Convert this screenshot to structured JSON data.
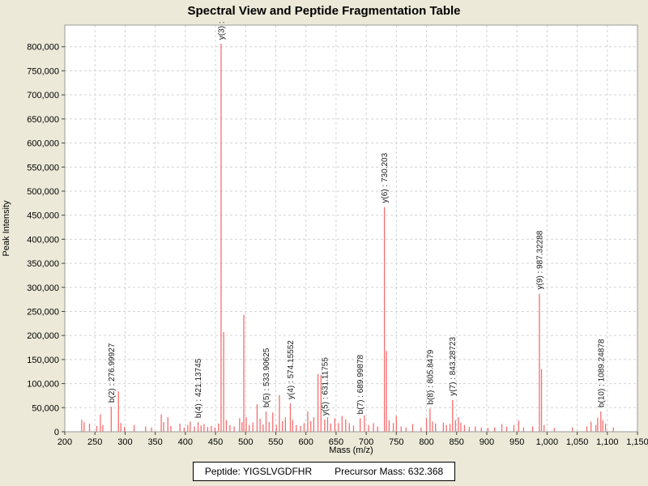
{
  "window": {
    "title": "Spectral View and Peptide Fragmentation Table"
  },
  "status_bar": {
    "peptide": "Peptide: YIGSLVGDFHR",
    "precursor_mass": "Precursor Mass: 632.368"
  },
  "chart_data": {
    "type": "bar",
    "title": "Spectral View and Peptide Fragmentation Table",
    "xlabel": "Mass (m/z)",
    "ylabel": "Peak Intensity",
    "xlim": [
      200,
      1150
    ],
    "ylim": [
      0,
      845000
    ],
    "xtick_interval": 50,
    "ytick_interval": 50000,
    "ytick_top": 800000,
    "grid": true,
    "legend": "none",
    "colors": {
      "peak": "#f56e6e",
      "grid": "#d4d4d4",
      "plot_bg": "#ffffff",
      "window_bg": "#ece9d8",
      "frame": "#9a9a9a",
      "tick": "#444444",
      "label_text": "#1a1a1a"
    },
    "annotations": [
      {
        "label": "b(2) : 276.99927",
        "mz": 276.99927
      },
      {
        "label": "b(4) : 421.13745",
        "mz": 421.13745
      },
      {
        "label": "y(3) :",
        "mz": 459.25
      },
      {
        "label": "b(5) : 533.90625",
        "mz": 533.90625
      },
      {
        "label": "y(4) : 574.15552",
        "mz": 574.15552
      },
      {
        "label": "y(5) : 631.11755",
        "mz": 631.11755
      },
      {
        "label": "b(7) : 689.99878",
        "mz": 689.99878
      },
      {
        "label": "y(6) : 730.203",
        "mz": 730.203
      },
      {
        "label": "b(8) : 805.8479",
        "mz": 805.8479
      },
      {
        "label": "y(7) : 843.28723",
        "mz": 843.28723
      },
      {
        "label": "y(9) : 987.32288",
        "mz": 987.32288
      },
      {
        "label": "b(10) : 1089.24878",
        "mz": 1089.24878
      }
    ],
    "peaks": [
      [
        228,
        25000
      ],
      [
        232,
        20000
      ],
      [
        241,
        17000
      ],
      [
        253,
        12000
      ],
      [
        259,
        36000
      ],
      [
        263,
        14000
      ],
      [
        276.99927,
        52000,
        "b(2) : 276.99927"
      ],
      [
        289,
        84000
      ],
      [
        293,
        18000
      ],
      [
        299,
        10000
      ],
      [
        315,
        14000
      ],
      [
        334,
        11000
      ],
      [
        344,
        9000
      ],
      [
        360,
        36000
      ],
      [
        364,
        20000
      ],
      [
        371,
        30000
      ],
      [
        376,
        12000
      ],
      [
        391,
        17000
      ],
      [
        398,
        9000
      ],
      [
        404,
        14000
      ],
      [
        408,
        21000
      ],
      [
        415,
        11000
      ],
      [
        421.13745,
        20000,
        "b(4) : 421.13745"
      ],
      [
        426,
        13000
      ],
      [
        431,
        16000
      ],
      [
        437,
        10000
      ],
      [
        443,
        12000
      ],
      [
        449,
        9000
      ],
      [
        455,
        17000
      ],
      [
        459.25,
        806000,
        "y(3) :"
      ],
      [
        463.5,
        207000
      ],
      [
        468,
        24000
      ],
      [
        474,
        14000
      ],
      [
        481,
        11000
      ],
      [
        490,
        28000
      ],
      [
        494,
        20000
      ],
      [
        497,
        243000
      ],
      [
        501,
        30000
      ],
      [
        506,
        14000
      ],
      [
        512,
        19000
      ],
      [
        519,
        57000
      ],
      [
        524,
        27000
      ],
      [
        529,
        15000
      ],
      [
        533.90625,
        42000,
        "b(5) : 533.90625"
      ],
      [
        539,
        20000
      ],
      [
        545,
        40000
      ],
      [
        551,
        14000
      ],
      [
        556,
        76000
      ],
      [
        561,
        22000
      ],
      [
        566,
        30000
      ],
      [
        574.15552,
        59000,
        "y(4) : 574.15552"
      ],
      [
        578,
        25000
      ],
      [
        584,
        14000
      ],
      [
        591,
        12000
      ],
      [
        597,
        18000
      ],
      [
        603,
        42000
      ],
      [
        608,
        22000
      ],
      [
        613,
        30000
      ],
      [
        620,
        120000
      ],
      [
        625,
        118000
      ],
      [
        631.11755,
        25000,
        "y(5) : 631.11755"
      ],
      [
        636,
        30000
      ],
      [
        641,
        17000
      ],
      [
        648,
        28000
      ],
      [
        654,
        18000
      ],
      [
        660,
        33000
      ],
      [
        666,
        26000
      ],
      [
        672,
        18000
      ],
      [
        679,
        13000
      ],
      [
        689.99878,
        28000,
        "b(7) : 689.99878"
      ],
      [
        697,
        34000
      ],
      [
        704,
        14000
      ],
      [
        712,
        18000
      ],
      [
        719,
        11000
      ],
      [
        730.203,
        467000,
        "y(6) : 730.203"
      ],
      [
        733.5,
        168000
      ],
      [
        738,
        24000
      ],
      [
        745,
        18000
      ],
      [
        750,
        33000
      ],
      [
        758,
        11000
      ],
      [
        766,
        9000
      ],
      [
        777,
        16000
      ],
      [
        791,
        9000
      ],
      [
        800,
        29000
      ],
      [
        805.8479,
        48000,
        "b(8) : 805.8479"
      ],
      [
        810,
        21000
      ],
      [
        815,
        17000
      ],
      [
        828,
        19000
      ],
      [
        833,
        14000
      ],
      [
        839,
        16000
      ],
      [
        843.28723,
        66000,
        "y(7) : 843.28723"
      ],
      [
        848,
        24000
      ],
      [
        853,
        30000
      ],
      [
        857,
        19000
      ],
      [
        863,
        14000
      ],
      [
        871,
        10000
      ],
      [
        881,
        11000
      ],
      [
        891,
        9000
      ],
      [
        902,
        8000
      ],
      [
        913,
        9000
      ],
      [
        925,
        16000
      ],
      [
        933,
        11000
      ],
      [
        945,
        14000
      ],
      [
        953,
        23000
      ],
      [
        961,
        9000
      ],
      [
        976,
        11000
      ],
      [
        987.32288,
        287000,
        "y(9) : 987.32288"
      ],
      [
        990.8,
        130000
      ],
      [
        995,
        14000
      ],
      [
        1012,
        8000
      ],
      [
        1042,
        9000
      ],
      [
        1066,
        11000
      ],
      [
        1073,
        21000
      ],
      [
        1081,
        14000
      ],
      [
        1084,
        29000
      ],
      [
        1089.24878,
        42000,
        "b(10) : 1089.24878"
      ],
      [
        1092.5,
        24000
      ],
      [
        1097,
        17000
      ],
      [
        1110,
        9000
      ]
    ]
  }
}
